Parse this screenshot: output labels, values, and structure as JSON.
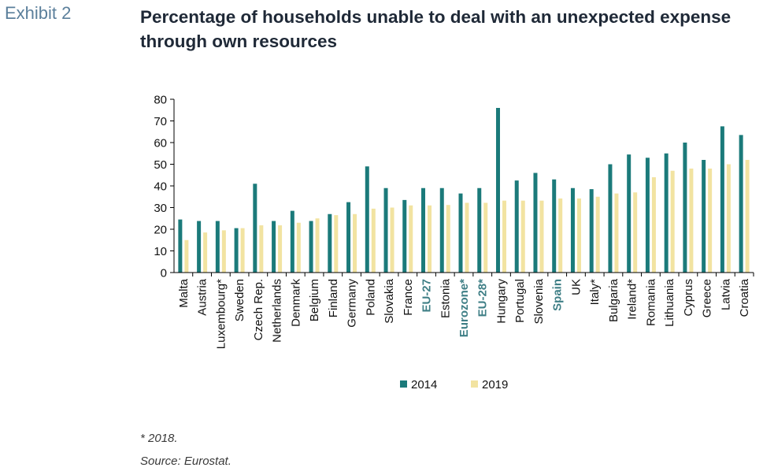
{
  "exhibit_label": "Exhibit 2",
  "title": "Percentage of households unable to deal with an unexpected expense through own resources",
  "footnote": "* 2018.",
  "source": "Source: Eurostat.",
  "colors": {
    "2014": "#1b7a7a",
    "2019": "#f2e3a1",
    "highlight_label": "#3f7f86",
    "axis": "#000000"
  },
  "chart_data": {
    "type": "bar",
    "title": "Percentage of households unable to deal with an unexpected expense through own resources",
    "xlabel": "",
    "ylabel": "",
    "ylim": [
      0,
      80
    ],
    "yticks": [
      0,
      10,
      20,
      30,
      40,
      50,
      60,
      70,
      80
    ],
    "grid": false,
    "legend_position": "bottom",
    "categories": [
      "Malta",
      "Austria",
      "Luxembourg*",
      "Sweden",
      "Czech Rep.",
      "Netherlands",
      "Denmark",
      "Belgium",
      "Finland",
      "Germany",
      "Poland",
      "Slovakia",
      "France",
      "EU-27",
      "Estonia",
      "Eurozone*",
      "EU-28*",
      "Hungary",
      "Portugal",
      "Slovenia",
      "Spain",
      "UK",
      "Italy*",
      "Bulgaria",
      "Ireland*",
      "Romania",
      "Lithuania",
      "Cyprus",
      "Greece",
      "Latvia",
      "Croatia"
    ],
    "highlighted_categories": [
      "EU-27",
      "Eurozone*",
      "EU-28*",
      "Spain"
    ],
    "series": [
      {
        "name": "2014",
        "values": [
          24.5,
          23.8,
          23.8,
          20.5,
          41,
          23.8,
          28.5,
          23.8,
          27,
          32.5,
          49,
          39,
          33.5,
          39,
          39,
          36.5,
          39,
          76,
          42.5,
          46,
          43,
          39,
          38.5,
          50,
          54.5,
          53,
          55,
          60,
          52,
          67.5,
          63.5
        ]
      },
      {
        "name": "2019",
        "values": [
          15,
          18.5,
          19.5,
          20.5,
          21.8,
          21.8,
          23,
          25,
          26.5,
          27,
          29.5,
          30,
          31,
          31,
          31.2,
          32.2,
          32.2,
          33.2,
          33.2,
          33.2,
          34.2,
          34.2,
          35,
          36.5,
          37,
          44,
          47,
          48,
          48,
          50,
          52
        ]
      }
    ]
  }
}
